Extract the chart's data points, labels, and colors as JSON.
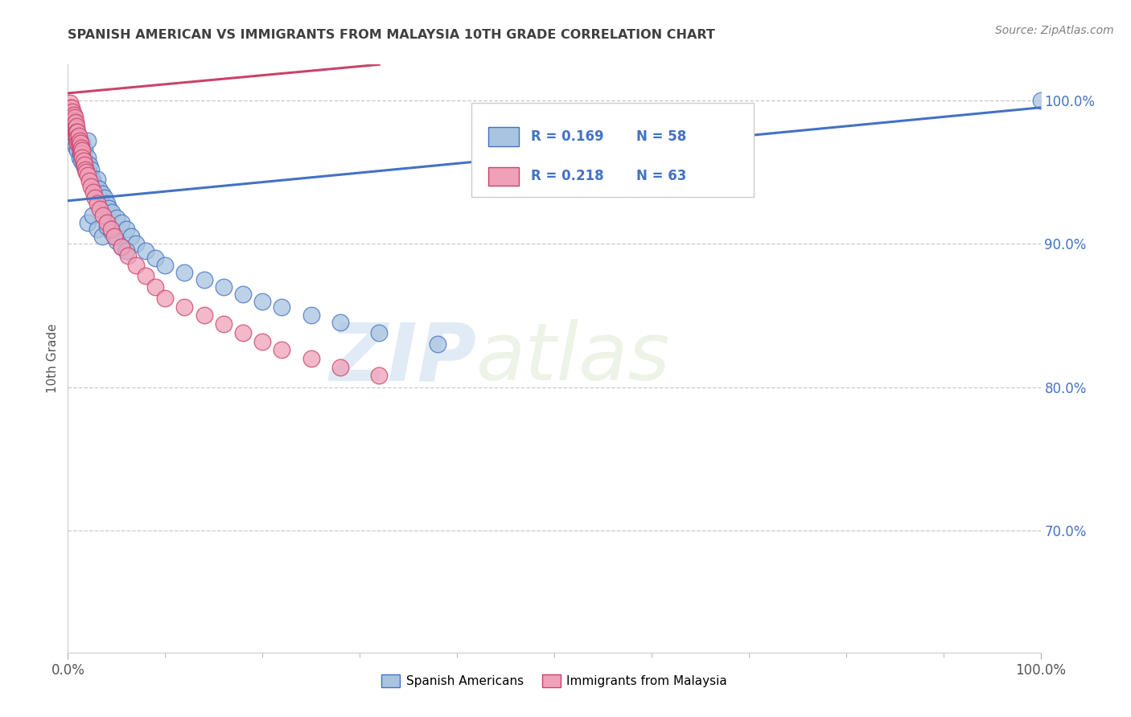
{
  "title": "SPANISH AMERICAN VS IMMIGRANTS FROM MALAYSIA 10TH GRADE CORRELATION CHART",
  "source": "Source: ZipAtlas.com",
  "ylabel": "10th Grade",
  "xlim": [
    0.0,
    1.0
  ],
  "ylim": [
    0.615,
    1.025
  ],
  "x_tick_labels": [
    "0.0%",
    "100.0%"
  ],
  "x_tick_positions": [
    0.0,
    1.0
  ],
  "y_tick_labels": [
    "70.0%",
    "80.0%",
    "90.0%",
    "100.0%"
  ],
  "y_tick_positions": [
    0.7,
    0.8,
    0.9,
    1.0
  ],
  "legend_entries": [
    {
      "label": "Spanish Americans",
      "R": "0.169",
      "N": "58"
    },
    {
      "label": "Immigrants from Malaysia",
      "R": "0.218",
      "N": "63"
    }
  ],
  "watermark_zip": "ZIP",
  "watermark_atlas": "atlas",
  "blue_scatter_x": [
    0.005,
    0.007,
    0.008,
    0.01,
    0.01,
    0.012,
    0.012,
    0.013,
    0.014,
    0.015,
    0.015,
    0.016,
    0.017,
    0.018,
    0.019,
    0.02,
    0.02,
    0.021,
    0.022,
    0.023,
    0.024,
    0.025,
    0.026,
    0.028,
    0.03,
    0.032,
    0.035,
    0.038,
    0.04,
    0.042,
    0.045,
    0.05,
    0.055,
    0.06,
    0.065,
    0.07,
    0.08,
    0.09,
    0.1,
    0.12,
    0.14,
    0.16,
    0.18,
    0.2,
    0.22,
    0.25,
    0.28,
    0.32,
    0.38,
    0.02,
    0.025,
    0.03,
    0.035,
    0.04,
    0.045,
    0.05,
    0.055,
    0.06,
    1.0
  ],
  "blue_scatter_y": [
    0.975,
    0.97,
    0.968,
    0.965,
    0.972,
    0.96,
    0.968,
    0.963,
    0.958,
    0.962,
    0.97,
    0.955,
    0.965,
    0.958,
    0.952,
    0.96,
    0.972,
    0.95,
    0.955,
    0.948,
    0.952,
    0.945,
    0.942,
    0.94,
    0.945,
    0.938,
    0.935,
    0.932,
    0.928,
    0.925,
    0.922,
    0.918,
    0.915,
    0.91,
    0.905,
    0.9,
    0.895,
    0.89,
    0.885,
    0.88,
    0.875,
    0.87,
    0.865,
    0.86,
    0.856,
    0.85,
    0.845,
    0.838,
    0.83,
    0.915,
    0.92,
    0.91,
    0.905,
    0.912,
    0.908,
    0.902,
    0.898,
    0.895,
    1.0
  ],
  "pink_scatter_x": [
    0.002,
    0.003,
    0.003,
    0.004,
    0.004,
    0.005,
    0.005,
    0.005,
    0.006,
    0.006,
    0.006,
    0.007,
    0.007,
    0.007,
    0.008,
    0.008,
    0.008,
    0.009,
    0.009,
    0.009,
    0.01,
    0.01,
    0.01,
    0.011,
    0.011,
    0.012,
    0.012,
    0.013,
    0.013,
    0.014,
    0.014,
    0.015,
    0.015,
    0.016,
    0.017,
    0.018,
    0.019,
    0.02,
    0.022,
    0.024,
    0.026,
    0.028,
    0.03,
    0.033,
    0.036,
    0.04,
    0.044,
    0.048,
    0.055,
    0.062,
    0.07,
    0.08,
    0.09,
    0.1,
    0.12,
    0.14,
    0.16,
    0.18,
    0.2,
    0.22,
    0.25,
    0.28,
    0.32
  ],
  "pink_scatter_y": [
    0.998,
    0.995,
    0.992,
    0.995,
    0.99,
    0.992,
    0.988,
    0.985,
    0.99,
    0.986,
    0.982,
    0.988,
    0.984,
    0.98,
    0.985,
    0.981,
    0.977,
    0.982,
    0.978,
    0.974,
    0.978,
    0.974,
    0.97,
    0.975,
    0.971,
    0.972,
    0.968,
    0.97,
    0.965,
    0.967,
    0.963,
    0.965,
    0.96,
    0.958,
    0.955,
    0.952,
    0.95,
    0.948,
    0.944,
    0.94,
    0.936,
    0.932,
    0.928,
    0.924,
    0.92,
    0.915,
    0.91,
    0.905,
    0.898,
    0.892,
    0.885,
    0.878,
    0.87,
    0.862,
    0.856,
    0.85,
    0.844,
    0.838,
    0.832,
    0.826,
    0.82,
    0.814,
    0.808
  ],
  "blue_line_x": [
    0.0,
    1.0
  ],
  "blue_line_y": [
    0.93,
    0.995
  ],
  "pink_line_x": [
    0.0,
    0.32
  ],
  "pink_line_y": [
    1.005,
    1.025
  ],
  "blue_color": "#4472c4",
  "pink_color": "#c9446a",
  "blue_scatter_color": "#a8c4e0",
  "pink_scatter_color": "#f0a0b8",
  "grid_color": "#c8c8c8",
  "background_color": "#ffffff",
  "title_color": "#404040",
  "source_color": "#808080",
  "ytick_color": "#4472c4"
}
